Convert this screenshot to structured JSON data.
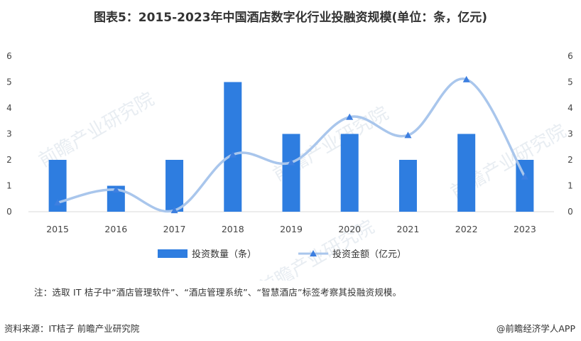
{
  "title": "图表5：2015-2023年中国酒店数字化行业投融资规模(单位：条，亿元)",
  "note": "注：选取 IT 桔子中“酒店管理软件”、“酒店管理系统”、“智慧酒店”标签考察其投融资规模。",
  "source": "资料来源：IT桔子 前瞻产业研究院",
  "brand": "@前瞻经济学人APP",
  "watermark": "前瞻产业研究院",
  "colors": {
    "bar": "#2e7de0",
    "line": "#a9c6ec",
    "marker": "#3d7fe0"
  },
  "chart_data": {
    "type": "bar",
    "categories": [
      "2015",
      "2016",
      "2017",
      "2018",
      "2019",
      "2020",
      "2021",
      "2022",
      "2023"
    ],
    "series": [
      {
        "name": "投资数量（条）",
        "type": "bar",
        "axis": "left",
        "values": [
          2,
          1,
          2,
          5,
          3,
          3,
          2,
          3,
          2
        ]
      },
      {
        "name": "投资金额（亿元）",
        "type": "line",
        "axis": "right",
        "values": [
          0.35,
          0.85,
          0.05,
          2.2,
          1.9,
          3.65,
          2.95,
          5.1,
          1.35
        ]
      }
    ],
    "ylim": [
      0,
      6
    ],
    "y2lim": [
      0,
      6
    ],
    "yticks": [
      0,
      1,
      2,
      3,
      4,
      5,
      6
    ],
    "legend": "bottom",
    "grid": false
  }
}
